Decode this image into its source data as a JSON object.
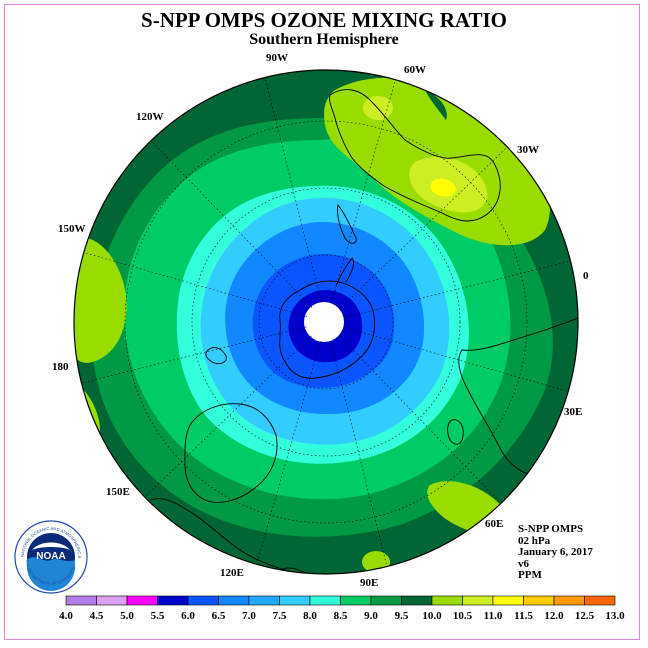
{
  "title": "S-NPP OMPS OZONE MIXING RATIO",
  "subtitle": "Southern Hemisphere",
  "longitude_labels": [
    "90W",
    "60W",
    "30W",
    "0",
    "30E",
    "60E",
    "90E",
    "120E",
    "150E",
    "180",
    "150W",
    "120W"
  ],
  "info": {
    "instrument": "S-NPP OMPS",
    "level": "02 hPa",
    "date": "January 6, 2017",
    "version": "v6",
    "units": "PPM"
  },
  "logo": {
    "text": "NOAA",
    "ring_text": "NATIONAL OCEANIC AND ATMOSPHERIC ADMINISTRATION",
    "ring_text_bottom": "U.S. DEPARTMENT OF COMMERCE"
  },
  "colorbar": {
    "labels": [
      "4.0",
      "4.5",
      "5.0",
      "5.5",
      "6.0",
      "6.5",
      "7.0",
      "7.5",
      "8.0",
      "8.5",
      "9.0",
      "9.5",
      "10.0",
      "10.5",
      "11.0",
      "11.5",
      "12.0",
      "12.5",
      "13.0"
    ],
    "colors": [
      "#b27fe8",
      "#dda0f0",
      "#ff00ff",
      "#0000cc",
      "#0a55ff",
      "#1188ff",
      "#22aaff",
      "#33ccff",
      "#33ffdd",
      "#00cc66",
      "#009944",
      "#006633",
      "#99dd00",
      "#ccee22",
      "#ffff00",
      "#ffcc00",
      "#ff9900",
      "#ff6600",
      "#ff0000",
      "#8b4513"
    ]
  },
  "colors": {
    "outer": "#006633",
    "level_8_5": "#009944",
    "level_8_0": "#00cc66",
    "level_7_5": "#33ffdd",
    "level_7_0": "#33ccff",
    "level_6_5": "#1188ff",
    "level_6_0": "#0a55ff",
    "level_5_5": "#0000cc",
    "level_9_0": "#99dd00",
    "level_9_5": "#ccee22",
    "level_10_0": "#ffff00",
    "missing": "#ffffff"
  }
}
